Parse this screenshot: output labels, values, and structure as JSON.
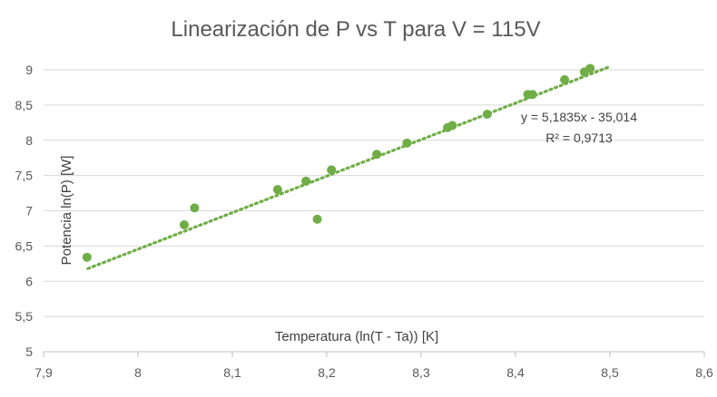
{
  "chart_data": {
    "type": "scatter",
    "title": "Linearización de P vs T para V = 115V",
    "xlabel": "Temperatura (ln(T - Ta)) [K]",
    "ylabel": "Potencia ln(P) [W]",
    "xlim": [
      7.9,
      8.6
    ],
    "ylim": [
      5,
      9
    ],
    "x_ticks": [
      "7,9",
      "8",
      "8,1",
      "8,2",
      "8,3",
      "8,4",
      "8,5",
      "8,6"
    ],
    "y_ticks": [
      "5",
      "5,5",
      "6",
      "6,5",
      "7",
      "7,5",
      "8",
      "8,5",
      "9"
    ],
    "grid": "horizontal",
    "point_color": "#70AD47",
    "trendline_color": "#70AD47",
    "series": [
      {
        "x": [
          7.946,
          8.049,
          8.06,
          8.148,
          8.178,
          8.19,
          8.205,
          8.253,
          8.285,
          8.328,
          8.333,
          8.37,
          8.413,
          8.418,
          8.452,
          8.473,
          8.479
        ],
        "y": [
          6.34,
          6.8,
          7.04,
          7.3,
          7.42,
          6.88,
          7.58,
          7.8,
          7.96,
          8.18,
          8.21,
          8.37,
          8.65,
          8.65,
          8.86,
          8.97,
          9.02
        ]
      }
    ],
    "trendline": {
      "type": "linear",
      "slope": 5.1835,
      "intercept": -35.014,
      "x_range": [
        7.947,
        8.5
      ],
      "equation": "y = 5,1835x - 35,014",
      "r2": "R² = 0,9713"
    }
  }
}
